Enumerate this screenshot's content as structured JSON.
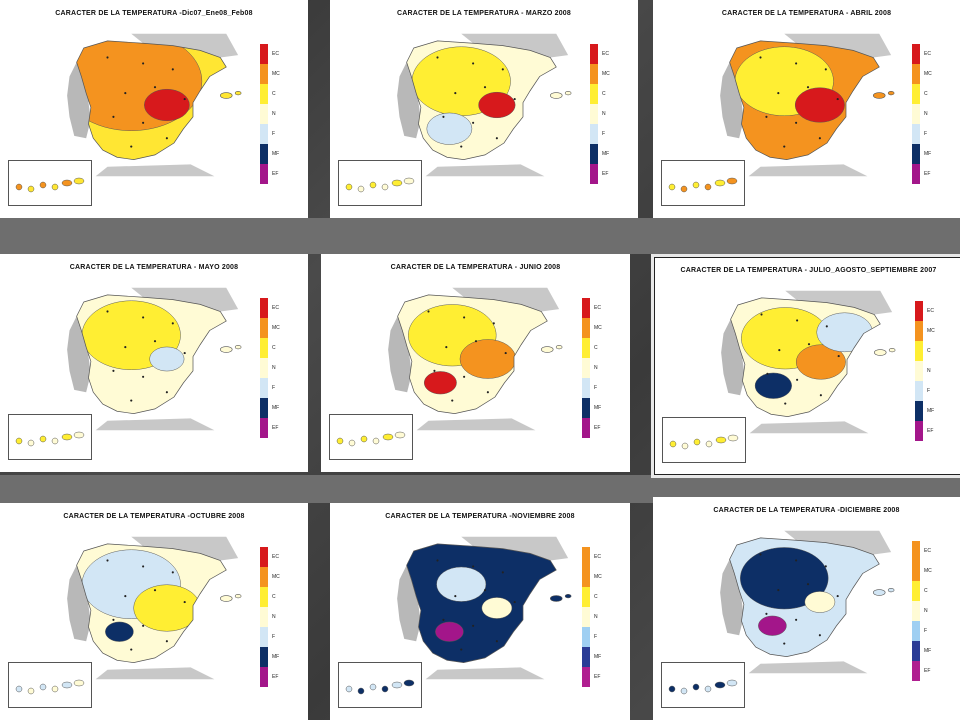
{
  "legend": {
    "labels": [
      "EC",
      "MC",
      "C",
      "N",
      "F",
      "MF",
      "EF"
    ],
    "colors": [
      "#d7191c",
      "#f4931f",
      "#ffee33",
      "#fffbd5",
      "#d2e6f5",
      "#0d2f66",
      "#a3168a"
    ],
    "alt_colors": [
      "#f4931f",
      "#f4931f",
      "#ffee33",
      "#fffbd5",
      "#9fcff2",
      "#2a3c96",
      "#b01f90"
    ]
  },
  "panels": [
    {
      "id": "dic-feb",
      "title": "CARACTER DE LA TEMPERATURA -Dic07_Ene08_Feb08",
      "fill": "#ffe633",
      "blobs": [
        [
          "#f4931f",
          0.55
        ],
        [
          "#d7191c",
          0.1
        ]
      ]
    },
    {
      "id": "marzo",
      "title": "CARACTER DE LA TEMPERATURA - MARZO  2008",
      "fill": "#fffbd5",
      "blobs": [
        [
          "#ffee33",
          0.35
        ],
        [
          "#d7191c",
          0.06
        ],
        [
          "#d2e6f5",
          0.1
        ]
      ]
    },
    {
      "id": "abril",
      "title": "CARACTER DE LA TEMPERATURA -  ABRIL  2008",
      "fill": "#f4931f",
      "blobs": [
        [
          "#ffee33",
          0.35
        ],
        [
          "#d7191c",
          0.12
        ]
      ]
    },
    {
      "id": "mayo",
      "title": "CARACTER DE LA TEMPERATURA - MAYO  2008",
      "fill": "#fffbd5",
      "blobs": [
        [
          "#ffee33",
          0.35
        ],
        [
          "#d2e6f5",
          0.05
        ]
      ]
    },
    {
      "id": "junio",
      "title": "CARACTER DE LA TEMPERATURA - JUNIO  2008",
      "fill": "#fffbd5",
      "blobs": [
        [
          "#ffee33",
          0.3
        ],
        [
          "#f4931f",
          0.15
        ],
        [
          "#d7191c",
          0.04
        ]
      ]
    },
    {
      "id": "jas",
      "title": "CARACTER DE LA TEMPERATURA -  JULIO_AGOSTO_SEPTIEMBRE  2007",
      "fill": "#fffbd5",
      "blobs": [
        [
          "#ffee33",
          0.3
        ],
        [
          "#f4931f",
          0.12
        ],
        [
          "#0d2f66",
          0.06
        ],
        [
          "#d2e6f5",
          0.15
        ]
      ]
    },
    {
      "id": "octubre",
      "title": "CARACTER DE LA TEMPERATURA -OCTUBRE  2008",
      "fill": "#fffbd5",
      "blobs": [
        [
          "#d2e6f5",
          0.35
        ],
        [
          "#ffee33",
          0.2
        ],
        [
          "#0d2f66",
          0.02
        ]
      ]
    },
    {
      "id": "noviembre",
      "title": "CARACTER DE LA TEMPERATURA -NOVIEMBRE 2008",
      "fill": "#0d2f66",
      "blobs": [
        [
          "#d2e6f5",
          0.12
        ],
        [
          "#fffbd5",
          0.03
        ],
        [
          "#a3168a",
          0.02
        ]
      ]
    },
    {
      "id": "diciembre",
      "title": "CARACTER DE LA TEMPERATURA -DICIEMBRE  2008",
      "fill": "#d2e6f5",
      "blobs": [
        [
          "#0d2f66",
          0.3
        ],
        [
          "#fffbd5",
          0.03
        ],
        [
          "#a3168a",
          0.02
        ]
      ]
    }
  ]
}
